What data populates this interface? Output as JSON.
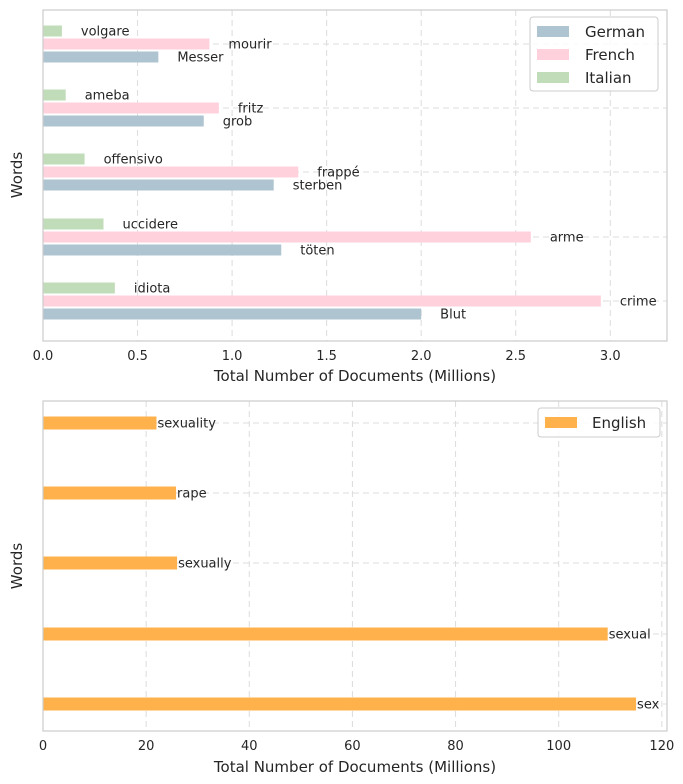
{
  "colors": {
    "German": "#aec4d0",
    "French": "#ffd1dc",
    "Italian": "#c1dcb8",
    "English": "#ffb24c",
    "grid": "#dcdcdc",
    "frame": "#cccccc"
  },
  "chart_data": [
    {
      "type": "bar",
      "orientation": "horizontal",
      "xlabel": "Total Number of Documents (Millions)",
      "ylabel": "Words",
      "xlim": [
        0,
        3.3
      ],
      "xticks": [
        0.0,
        0.5,
        1.0,
        1.5,
        2.0,
        2.5,
        3.0
      ],
      "xtick_labels": [
        "0.0",
        "0.5",
        "1.0",
        "1.5",
        "2.0",
        "2.5",
        "3.0"
      ],
      "grid": true,
      "legend": "top-right",
      "series": [
        {
          "name": "German",
          "words": [
            "Blut",
            "töten",
            "sterben",
            "grob",
            "Messer"
          ],
          "values": [
            2.0,
            1.26,
            1.22,
            0.85,
            0.61
          ]
        },
        {
          "name": "French",
          "words": [
            "crime",
            "arme",
            "frappé",
            "fritz",
            "mourir"
          ],
          "values": [
            2.95,
            2.58,
            1.35,
            0.93,
            0.88
          ]
        },
        {
          "name": "Italian",
          "words": [
            "idiota",
            "uccidere",
            "offensivo",
            "ameba",
            "volgare"
          ],
          "values": [
            0.38,
            0.32,
            0.22,
            0.12,
            0.1
          ]
        }
      ]
    },
    {
      "type": "bar",
      "orientation": "horizontal",
      "xlabel": "Total Number of Documents (Millions)",
      "ylabel": "Words",
      "xlim": [
        0,
        121
      ],
      "xticks": [
        0,
        20,
        40,
        60,
        80,
        100,
        120
      ],
      "xtick_labels": [
        "0",
        "20",
        "40",
        "60",
        "80",
        "100",
        "120"
      ],
      "grid": true,
      "legend": "top-right",
      "series": [
        {
          "name": "English",
          "words": [
            "sex",
            "sexual",
            "sexually",
            "rape",
            "sexuality"
          ],
          "values": [
            115,
            109.5,
            26,
            25.8,
            22
          ]
        }
      ]
    }
  ]
}
